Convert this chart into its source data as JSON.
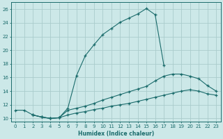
{
  "xlabel": "Humidex (Indice chaleur)",
  "background_color": "#cce8e8",
  "grid_color": "#aacccc",
  "line_color": "#1a6b6b",
  "xlim": [
    -0.5,
    23.5
  ],
  "ylim": [
    9.5,
    27
  ],
  "xticks": [
    0,
    1,
    2,
    3,
    4,
    5,
    6,
    7,
    8,
    9,
    10,
    11,
    12,
    13,
    14,
    15,
    16,
    17,
    18,
    19,
    20,
    21,
    22,
    23
  ],
  "yticks": [
    10,
    12,
    14,
    16,
    18,
    20,
    22,
    24,
    26
  ],
  "line1_x": [
    0,
    1,
    2,
    3,
    4,
    5,
    6,
    7,
    8,
    9,
    10,
    11,
    12,
    13,
    14,
    15,
    16,
    17
  ],
  "line1_y": [
    11.2,
    11.2,
    10.5,
    10.2,
    10.0,
    10.1,
    11.5,
    16.3,
    19.2,
    20.8,
    22.3,
    23.2,
    24.1,
    24.7,
    25.3,
    26.1,
    25.2,
    17.8
  ],
  "line2_x": [
    2,
    3,
    4,
    5,
    6,
    7,
    8,
    9,
    10,
    11,
    12,
    13,
    14,
    15,
    16,
    17,
    18,
    19,
    20,
    21,
    22,
    23
  ],
  "line2_y": [
    10.5,
    10.2,
    10.0,
    10.1,
    11.2,
    11.5,
    11.8,
    12.2,
    12.7,
    13.1,
    13.5,
    13.9,
    14.3,
    14.7,
    15.5,
    16.2,
    16.5,
    16.5,
    16.2,
    15.8,
    14.8,
    14.0
  ],
  "line3_x": [
    2,
    3,
    4,
    5,
    6,
    7,
    8,
    9,
    10,
    11,
    12,
    13,
    14,
    15,
    16,
    17,
    18,
    19,
    20,
    21,
    22,
    23
  ],
  "line3_y": [
    10.5,
    10.2,
    10.0,
    10.1,
    10.5,
    10.8,
    11.0,
    11.3,
    11.5,
    11.8,
    12.0,
    12.2,
    12.5,
    12.8,
    13.1,
    13.4,
    13.7,
    14.0,
    14.2,
    14.0,
    13.6,
    13.4
  ]
}
